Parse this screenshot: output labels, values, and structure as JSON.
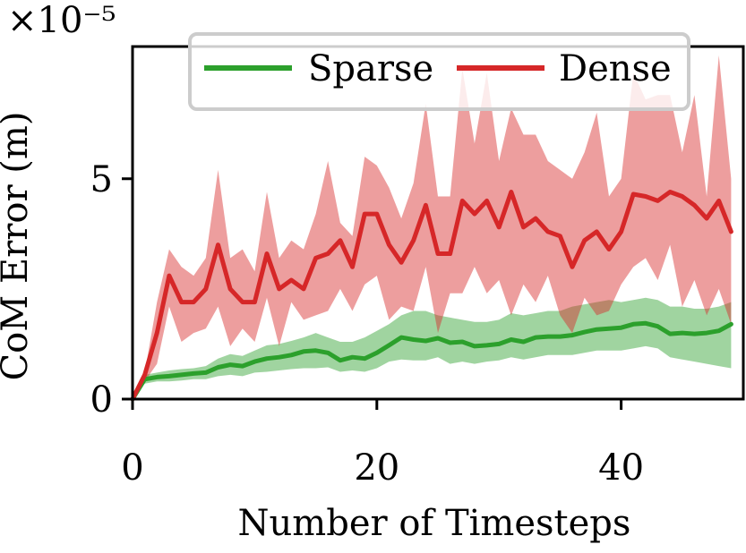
{
  "chart_data": {
    "type": "line",
    "xlabel": "Number of Timesteps",
    "ylabel": "CoM Error (m)",
    "y_multiplier_label": "×10⁻⁵",
    "xlim": [
      0,
      50
    ],
    "ylim": [
      0,
      8
    ],
    "xticks": [
      0,
      20,
      40
    ],
    "yticks": [
      0,
      5
    ],
    "grid": false,
    "legend_position": "top-center",
    "series": [
      {
        "name": "Sparse",
        "color": "#2ca02c",
        "band_color": "#2ca02c",
        "x": [
          0,
          1,
          2,
          3,
          4,
          5,
          6,
          7,
          8,
          9,
          10,
          11,
          12,
          13,
          14,
          15,
          16,
          17,
          18,
          19,
          20,
          21,
          22,
          23,
          24,
          25,
          26,
          27,
          28,
          29,
          30,
          31,
          32,
          33,
          34,
          35,
          36,
          37,
          38,
          39,
          40,
          41,
          42,
          43,
          44,
          45,
          46,
          47,
          48,
          49
        ],
        "mean": [
          0.0,
          0.45,
          0.5,
          0.52,
          0.55,
          0.58,
          0.6,
          0.72,
          0.78,
          0.75,
          0.85,
          0.92,
          0.95,
          1.0,
          1.08,
          1.1,
          1.05,
          0.88,
          0.95,
          0.92,
          1.05,
          1.22,
          1.4,
          1.35,
          1.32,
          1.38,
          1.28,
          1.3,
          1.2,
          1.22,
          1.25,
          1.35,
          1.3,
          1.4,
          1.42,
          1.42,
          1.45,
          1.52,
          1.58,
          1.6,
          1.62,
          1.7,
          1.72,
          1.65,
          1.48,
          1.5,
          1.48,
          1.5,
          1.55,
          1.7
        ],
        "lower": [
          0.0,
          0.35,
          0.4,
          0.4,
          0.42,
          0.45,
          0.45,
          0.52,
          0.55,
          0.52,
          0.6,
          0.62,
          0.65,
          0.68,
          0.7,
          0.7,
          0.72,
          0.62,
          0.65,
          0.62,
          0.7,
          0.85,
          0.9,
          0.88,
          0.88,
          0.95,
          0.8,
          0.85,
          0.8,
          0.85,
          0.88,
          0.95,
          0.9,
          0.95,
          1.0,
          1.0,
          1.0,
          1.05,
          1.1,
          1.1,
          1.1,
          1.15,
          1.2,
          1.15,
          0.95,
          0.9,
          0.85,
          0.8,
          0.75,
          0.7
        ],
        "upper": [
          0.0,
          0.55,
          0.6,
          0.65,
          0.68,
          0.7,
          0.75,
          0.92,
          1.02,
          0.98,
          1.1,
          1.22,
          1.25,
          1.32,
          1.4,
          1.5,
          1.4,
          1.3,
          1.3,
          1.4,
          1.55,
          1.7,
          1.9,
          2.0,
          2.0,
          1.9,
          1.85,
          1.8,
          1.75,
          1.75,
          1.8,
          1.95,
          1.9,
          1.95,
          2.0,
          2.0,
          2.1,
          2.15,
          2.2,
          2.25,
          2.2,
          2.25,
          2.3,
          2.25,
          2.1,
          2.1,
          2.05,
          2.05,
          2.1,
          2.2
        ]
      },
      {
        "name": "Dense",
        "color": "#d62728",
        "band_color": "#d62728",
        "x": [
          0,
          1,
          2,
          3,
          4,
          5,
          6,
          7,
          8,
          9,
          10,
          11,
          12,
          13,
          14,
          15,
          16,
          17,
          18,
          19,
          20,
          21,
          22,
          23,
          24,
          25,
          26,
          27,
          28,
          29,
          30,
          31,
          32,
          33,
          34,
          35,
          36,
          37,
          38,
          39,
          40,
          41,
          42,
          43,
          44,
          45,
          46,
          47,
          48,
          49
        ],
        "mean": [
          0.0,
          0.55,
          1.5,
          2.8,
          2.2,
          2.2,
          2.5,
          3.5,
          2.5,
          2.2,
          2.2,
          3.3,
          2.5,
          2.7,
          2.5,
          3.2,
          3.3,
          3.6,
          3.0,
          4.2,
          4.2,
          3.5,
          3.1,
          3.6,
          4.4,
          3.3,
          3.3,
          4.5,
          4.2,
          4.5,
          3.9,
          4.7,
          3.9,
          4.1,
          3.8,
          3.7,
          3.0,
          3.6,
          3.8,
          3.4,
          3.8,
          4.65,
          4.6,
          4.5,
          4.7,
          4.6,
          4.4,
          4.1,
          4.5,
          3.8
        ],
        "lower": [
          0.0,
          0.4,
          0.8,
          2.1,
          1.3,
          1.5,
          1.6,
          2.1,
          1.2,
          1.6,
          1.3,
          2.3,
          1.2,
          2.2,
          1.8,
          1.9,
          2.0,
          2.5,
          2.0,
          2.6,
          2.8,
          1.8,
          2.1,
          2.0,
          3.0,
          1.5,
          2.4,
          2.4,
          3.0,
          2.4,
          2.7,
          1.9,
          2.6,
          2.2,
          2.8,
          1.9,
          1.5,
          2.3,
          1.9,
          2.0,
          2.6,
          3.0,
          3.2,
          2.7,
          3.5,
          2.1,
          2.7,
          1.9,
          2.5,
          1.7
        ],
        "upper": [
          0.0,
          0.6,
          2.2,
          3.4,
          3.0,
          2.8,
          3.2,
          5.2,
          3.2,
          3.4,
          2.9,
          4.7,
          3.2,
          3.6,
          3.4,
          4.2,
          5.4,
          4.0,
          3.7,
          5.5,
          5.3,
          4.8,
          4.1,
          4.9,
          6.7,
          4.6,
          4.6,
          7.5,
          5.8,
          7.4,
          5.4,
          6.6,
          6.0,
          6.0,
          5.4,
          5.2,
          5.0,
          5.6,
          6.5,
          4.6,
          5.0,
          7.4,
          6.8,
          6.9,
          6.9,
          5.6,
          6.9,
          4.6,
          7.8,
          5.0
        ]
      }
    ]
  }
}
